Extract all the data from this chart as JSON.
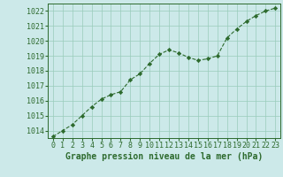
{
  "x": [
    0,
    1,
    2,
    3,
    4,
    5,
    6,
    7,
    8,
    9,
    10,
    11,
    12,
    13,
    14,
    15,
    16,
    17,
    18,
    19,
    20,
    21,
    22,
    23
  ],
  "y": [
    1013.6,
    1014.0,
    1014.4,
    1015.0,
    1015.6,
    1016.1,
    1016.4,
    1016.6,
    1017.4,
    1017.8,
    1018.5,
    1019.1,
    1019.4,
    1019.2,
    1018.9,
    1018.7,
    1018.8,
    1019.0,
    1020.2,
    1020.8,
    1021.3,
    1021.7,
    1022.0,
    1022.2
  ],
  "ylim": [
    1013.5,
    1022.5
  ],
  "yticks": [
    1014,
    1015,
    1016,
    1017,
    1018,
    1019,
    1020,
    1021,
    1022
  ],
  "xticks": [
    0,
    1,
    2,
    3,
    4,
    5,
    6,
    7,
    8,
    9,
    10,
    11,
    12,
    13,
    14,
    15,
    16,
    17,
    18,
    19,
    20,
    21,
    22,
    23
  ],
  "line_color": "#2d6a2d",
  "marker": "D",
  "marker_size": 2.2,
  "bg_color": "#cce9e9",
  "grid_color": "#99ccbb",
  "xlabel": "Graphe pression niveau de la mer (hPa)",
  "xlabel_fontsize": 7,
  "tick_fontsize": 6,
  "tick_color": "#2d6a2d",
  "label_color": "#2d6a2d"
}
